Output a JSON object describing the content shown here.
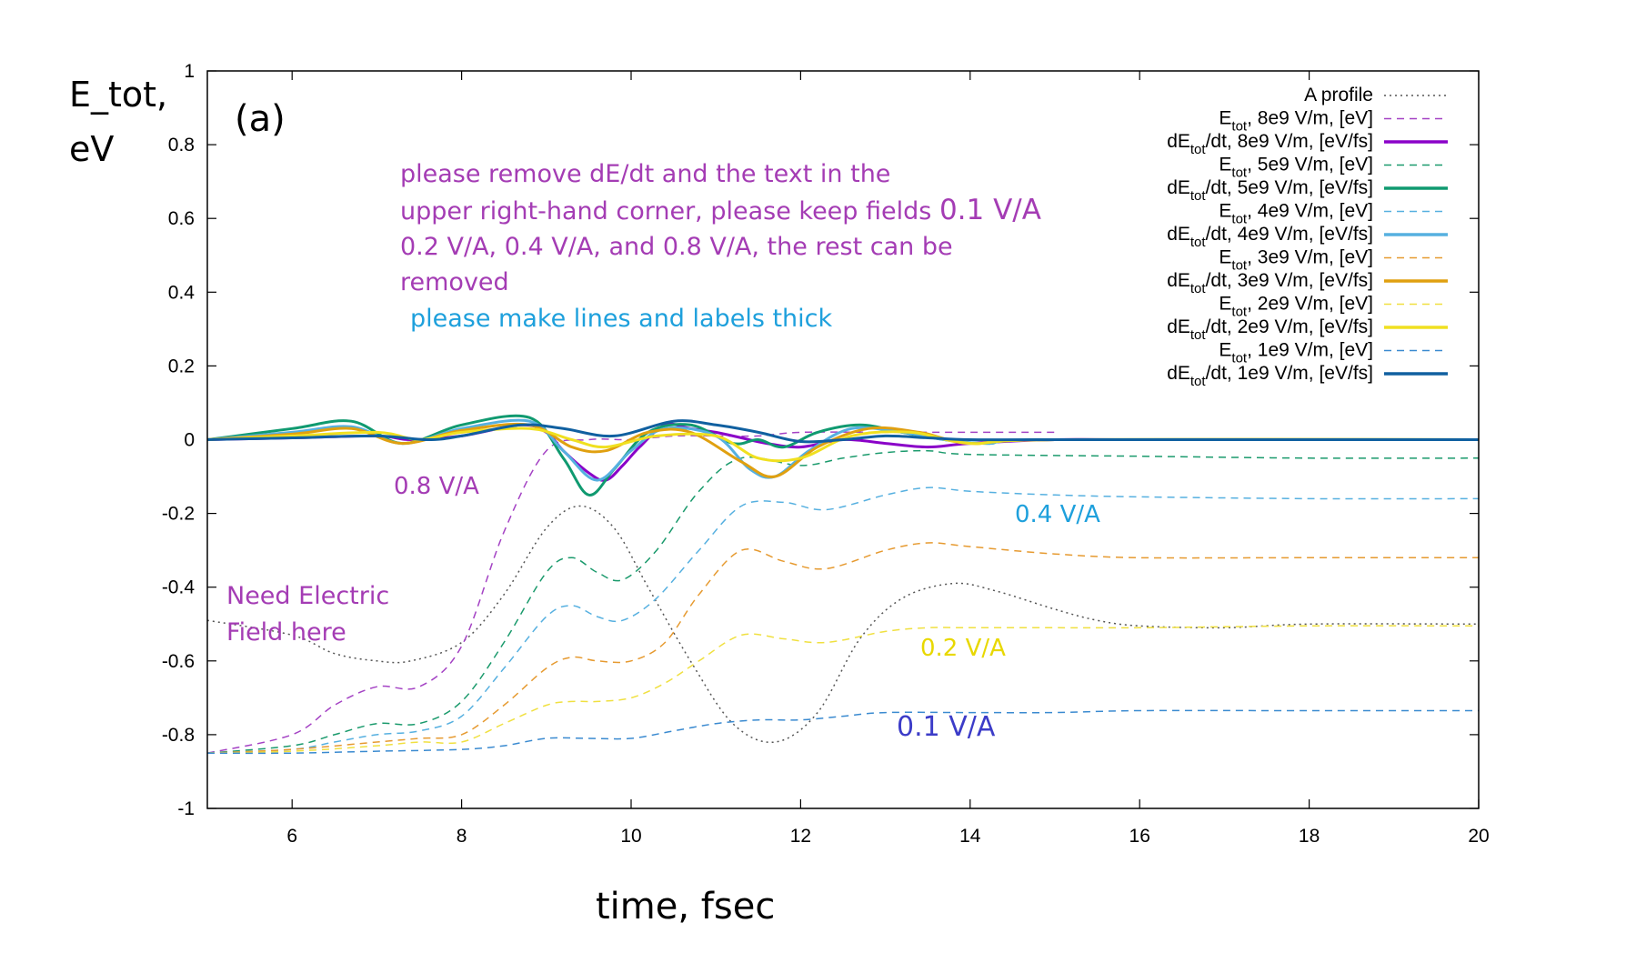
{
  "chart_data": {
    "type": "line",
    "panel_label": "(a)",
    "ylabel_line1": "E_tot,",
    "ylabel_line2": "eV",
    "xlabel": "time, fsec",
    "xlim": [
      5,
      20
    ],
    "ylim": [
      -1,
      1
    ],
    "xticks": [
      6,
      8,
      10,
      12,
      14,
      16,
      18,
      20
    ],
    "yticks": [
      -1,
      -0.8,
      -0.6,
      -0.4,
      -0.2,
      0,
      0.2,
      0.4,
      0.6,
      0.8,
      1
    ],
    "legend_position": "top-right",
    "legend": [
      {
        "text": "A profile",
        "sub": "",
        "rest": "",
        "color": "#555555",
        "style": "dotted"
      },
      {
        "text": "E",
        "sub": "tot",
        "rest": ", 8e9 V/m, [eV]",
        "color": "#a442c4",
        "style": "dashed"
      },
      {
        "text": "dE",
        "sub": "tot",
        "rest": "/dt, 8e9 V/m, [eV/fs]",
        "color": "#8a00c8",
        "style": "solid"
      },
      {
        "text": "E",
        "sub": "tot",
        "rest": ", 5e9 V/m, [eV]",
        "color": "#1a9a6c",
        "style": "dashed"
      },
      {
        "text": "dE",
        "sub": "tot",
        "rest": "/dt, 5e9 V/m, [eV/fs]",
        "color": "#109a70",
        "style": "solid"
      },
      {
        "text": "E",
        "sub": "tot",
        "rest": ", 4e9 V/m, [eV]",
        "color": "#56b0e0",
        "style": "dashed"
      },
      {
        "text": "dE",
        "sub": "tot",
        "rest": "/dt, 4e9 V/m, [eV/fs]",
        "color": "#56b0e0",
        "style": "solid"
      },
      {
        "text": "E",
        "sub": "tot",
        "rest": ", 3e9 V/m, [eV]",
        "color": "#e69a30",
        "style": "dashed"
      },
      {
        "text": "dE",
        "sub": "tot",
        "rest": "/dt, 3e9 V/m, [eV/fs]",
        "color": "#e0a010",
        "style": "solid"
      },
      {
        "text": "E",
        "sub": "tot",
        "rest": ", 2e9 V/m, [eV]",
        "color": "#f0e040",
        "style": "dashed"
      },
      {
        "text": "dE",
        "sub": "tot",
        "rest": "/dt, 2e9 V/m, [eV/fs]",
        "color": "#f0e020",
        "style": "solid"
      },
      {
        "text": "E",
        "sub": "tot",
        "rest": ", 1e9 V/m, [eV]",
        "color": "#3a8ad0",
        "style": "dashed"
      },
      {
        "text": "dE",
        "sub": "tot",
        "rest": "/dt, 1e9 V/m, [eV/fs]",
        "color": "#1060a0",
        "style": "solid"
      }
    ],
    "series": [
      {
        "name": "A profile",
        "color": "#555555",
        "style": "dotted",
        "x": [
          5,
          6,
          6.5,
          7,
          7.4,
          8,
          8.5,
          9,
          9.4,
          9.8,
          10.2,
          10.7,
          11.2,
          11.7,
          12.2,
          12.7,
          13.2,
          13.8,
          14.3,
          15,
          15.5,
          16,
          17,
          18,
          20
        ],
        "y": [
          -0.49,
          -0.53,
          -0.58,
          -0.6,
          -0.6,
          -0.55,
          -0.42,
          -0.24,
          -0.18,
          -0.24,
          -0.4,
          -0.6,
          -0.77,
          -0.82,
          -0.74,
          -0.54,
          -0.43,
          -0.39,
          -0.41,
          -0.46,
          -0.49,
          -0.505,
          -0.51,
          -0.5,
          -0.5
        ]
      },
      {
        "name": "E_tot 8e9 V/m",
        "color": "#a442c4",
        "style": "dashed",
        "x": [
          5,
          6,
          6.5,
          7,
          7.5,
          8,
          8.5,
          9,
          9.5,
          10,
          10.5,
          11,
          11.5,
          12,
          13,
          14,
          15
        ],
        "y": [
          -0.85,
          -0.8,
          -0.72,
          -0.67,
          -0.67,
          -0.56,
          -0.25,
          -0.03,
          0.0,
          0.0,
          0.01,
          0.01,
          0.01,
          0.02,
          0.02,
          0.02,
          0.02
        ]
      },
      {
        "name": "E_tot 5e9 V/m",
        "color": "#1a9a6c",
        "style": "dashed",
        "x": [
          5,
          6,
          6.5,
          7,
          7.5,
          8,
          8.5,
          9,
          9.3,
          9.6,
          9.9,
          10.3,
          10.8,
          11.3,
          12,
          12.5,
          13,
          13.5,
          14,
          16,
          18,
          20
        ],
        "y": [
          -0.85,
          -0.83,
          -0.8,
          -0.77,
          -0.77,
          -0.71,
          -0.55,
          -0.36,
          -0.32,
          -0.36,
          -0.38,
          -0.3,
          -0.14,
          -0.05,
          -0.07,
          -0.05,
          -0.035,
          -0.03,
          -0.04,
          -0.045,
          -0.05,
          -0.05
        ]
      },
      {
        "name": "E_tot 4e9 V/m",
        "color": "#56b0e0",
        "style": "dashed",
        "x": [
          5,
          6,
          6.5,
          7,
          7.5,
          8,
          8.5,
          9,
          9.3,
          9.6,
          9.9,
          10.3,
          10.8,
          11.3,
          11.8,
          12.3,
          13,
          13.5,
          14,
          15,
          16,
          18,
          20
        ],
        "y": [
          -0.85,
          -0.84,
          -0.82,
          -0.8,
          -0.79,
          -0.75,
          -0.62,
          -0.48,
          -0.45,
          -0.48,
          -0.49,
          -0.43,
          -0.3,
          -0.18,
          -0.17,
          -0.19,
          -0.15,
          -0.13,
          -0.14,
          -0.15,
          -0.155,
          -0.16,
          -0.16
        ]
      },
      {
        "name": "E_tot 3e9 V/m",
        "color": "#e69a30",
        "style": "dashed",
        "x": [
          5,
          6,
          7,
          7.5,
          8,
          8.5,
          9,
          9.3,
          9.6,
          10,
          10.4,
          10.8,
          11.3,
          11.8,
          12.3,
          13,
          13.5,
          14,
          15,
          16,
          18,
          20
        ],
        "y": [
          -0.85,
          -0.84,
          -0.82,
          -0.81,
          -0.8,
          -0.72,
          -0.62,
          -0.59,
          -0.6,
          -0.6,
          -0.55,
          -0.42,
          -0.3,
          -0.33,
          -0.35,
          -0.3,
          -0.28,
          -0.29,
          -0.31,
          -0.32,
          -0.32,
          -0.32
        ]
      },
      {
        "name": "E_tot 2e9 V/m",
        "color": "#f0e040",
        "style": "dashed",
        "x": [
          5,
          6,
          7,
          7.5,
          8,
          8.5,
          9,
          9.3,
          9.6,
          10,
          10.4,
          10.8,
          11.3,
          11.8,
          12.3,
          13,
          13.5,
          14,
          15,
          16,
          18,
          20
        ],
        "y": [
          -0.85,
          -0.845,
          -0.83,
          -0.82,
          -0.82,
          -0.77,
          -0.72,
          -0.71,
          -0.71,
          -0.7,
          -0.66,
          -0.6,
          -0.53,
          -0.54,
          -0.55,
          -0.52,
          -0.51,
          -0.51,
          -0.51,
          -0.51,
          -0.505,
          -0.505
        ]
      },
      {
        "name": "E_tot 1e9 V/m",
        "color": "#3a8ad0",
        "style": "dashed",
        "x": [
          5,
          6,
          7,
          8,
          8.5,
          9,
          9.5,
          10,
          10.5,
          11,
          11.5,
          12,
          12.5,
          13,
          14,
          15,
          16,
          18,
          20
        ],
        "y": [
          -0.85,
          -0.85,
          -0.845,
          -0.84,
          -0.83,
          -0.81,
          -0.81,
          -0.81,
          -0.79,
          -0.77,
          -0.76,
          -0.76,
          -0.75,
          -0.74,
          -0.74,
          -0.74,
          -0.735,
          -0.735,
          -0.735
        ]
      },
      {
        "name": "dE_tot/dt 8e9 V/m",
        "color": "#8a00c8",
        "style": "solid",
        "x": [
          5,
          6,
          7,
          7.4,
          8,
          8.7,
          9,
          9.2,
          9.5,
          9.7,
          9.9,
          10.1,
          10.4,
          10.7,
          11,
          11.3,
          11.6,
          12,
          12.5,
          13,
          13.5,
          14,
          15,
          16,
          20
        ],
        "y": [
          0.0,
          0.005,
          0.01,
          0.0,
          0.01,
          0.04,
          0.02,
          -0.03,
          -0.09,
          -0.11,
          -0.07,
          -0.02,
          0.04,
          0.03,
          0.02,
          0.005,
          -0.01,
          -0.02,
          0.0,
          -0.01,
          -0.02,
          -0.01,
          0.0,
          0.0,
          0.0
        ]
      },
      {
        "name": "dE_tot/dt 5e9 V/m",
        "color": "#109a70",
        "style": "solid",
        "x": [
          5,
          6,
          6.7,
          7.3,
          8,
          8.8,
          9.2,
          9.5,
          9.8,
          10.2,
          10.7,
          11.2,
          11.5,
          11.8,
          12.2,
          12.7,
          13.2,
          13.7,
          14.2,
          15,
          20
        ],
        "y": [
          0.0,
          0.03,
          0.05,
          -0.01,
          0.04,
          0.06,
          -0.05,
          -0.15,
          -0.08,
          0.02,
          0.04,
          -0.01,
          0.0,
          -0.02,
          0.02,
          0.04,
          0.02,
          0.0,
          -0.01,
          0.0,
          0.0
        ]
      },
      {
        "name": "dE_tot/dt 4e9 V/m",
        "color": "#56b0e0",
        "style": "solid",
        "x": [
          5,
          6,
          6.7,
          7.3,
          8,
          8.8,
          9.2,
          9.6,
          10,
          10.4,
          11,
          11.4,
          11.7,
          12.1,
          12.6,
          13.2,
          13.7,
          14.2,
          15,
          20
        ],
        "y": [
          0.0,
          0.02,
          0.035,
          -0.01,
          0.03,
          0.05,
          -0.03,
          -0.11,
          -0.03,
          0.03,
          0.01,
          -0.08,
          -0.1,
          -0.03,
          0.03,
          0.02,
          0.0,
          -0.01,
          0.0,
          0.0
        ]
      },
      {
        "name": "dE_tot/dt 3e9 V/m",
        "color": "#e0a010",
        "style": "solid",
        "x": [
          5,
          6,
          6.7,
          7.3,
          8,
          8.8,
          9.3,
          9.7,
          10.2,
          10.7,
          11.3,
          11.7,
          12.2,
          12.8,
          13.4,
          14,
          15,
          20
        ],
        "y": [
          0.0,
          0.015,
          0.03,
          -0.01,
          0.025,
          0.04,
          -0.02,
          -0.03,
          0.02,
          0.02,
          -0.06,
          -0.1,
          -0.02,
          0.03,
          0.02,
          -0.01,
          0.0,
          0.0
        ]
      },
      {
        "name": "dE_tot/dt 2e9 V/m",
        "color": "#f0e020",
        "style": "solid",
        "x": [
          5,
          6,
          7,
          7.5,
          8,
          8.8,
          9.3,
          9.7,
          10.3,
          11,
          11.5,
          12,
          12.6,
          13.3,
          14,
          15,
          20
        ],
        "y": [
          0.0,
          0.01,
          0.02,
          0.0,
          0.02,
          0.03,
          0.0,
          -0.02,
          0.01,
          0.01,
          -0.05,
          -0.05,
          0.01,
          0.02,
          -0.01,
          0.0,
          0.0
        ]
      },
      {
        "name": "dE_tot/dt 1e9 V/m",
        "color": "#1060a0",
        "style": "solid",
        "x": [
          5,
          6,
          7,
          7.6,
          8,
          8.7,
          9.2,
          9.8,
          10.5,
          11,
          11.5,
          12,
          12.5,
          13,
          13.5,
          14,
          15,
          20
        ],
        "y": [
          0.0,
          0.005,
          0.01,
          0.0,
          0.01,
          0.04,
          0.03,
          0.01,
          0.05,
          0.04,
          0.02,
          -0.005,
          0.0,
          0.01,
          0.005,
          0.0,
          0.0,
          0.0
        ]
      }
    ]
  },
  "annotations": {
    "instruction_line1": "please remove dE/dt and the text in the",
    "instruction_line2a": "upper right-hand corner, please keep fields",
    "instruction_line2b": "0.1 V/A",
    "instruction_line3": "0.2 V/A, 0.4 V/A, and 0.8 V/A, the rest can be",
    "instruction_line4": "removed",
    "instruction_line5": "please make lines and labels thick",
    "need_field_line1": "Need Electric",
    "need_field_line2": "Field here",
    "label_08": "0.8 V/A",
    "label_04": "0.4 V/A",
    "label_02": "0.2 V/A",
    "label_01": "0.1 V/A",
    "color_purple": "#a43cb4",
    "color_cyan": "#1ea0dc",
    "color_yellow": "#e8d800",
    "color_blue": "#3c3cc8"
  }
}
